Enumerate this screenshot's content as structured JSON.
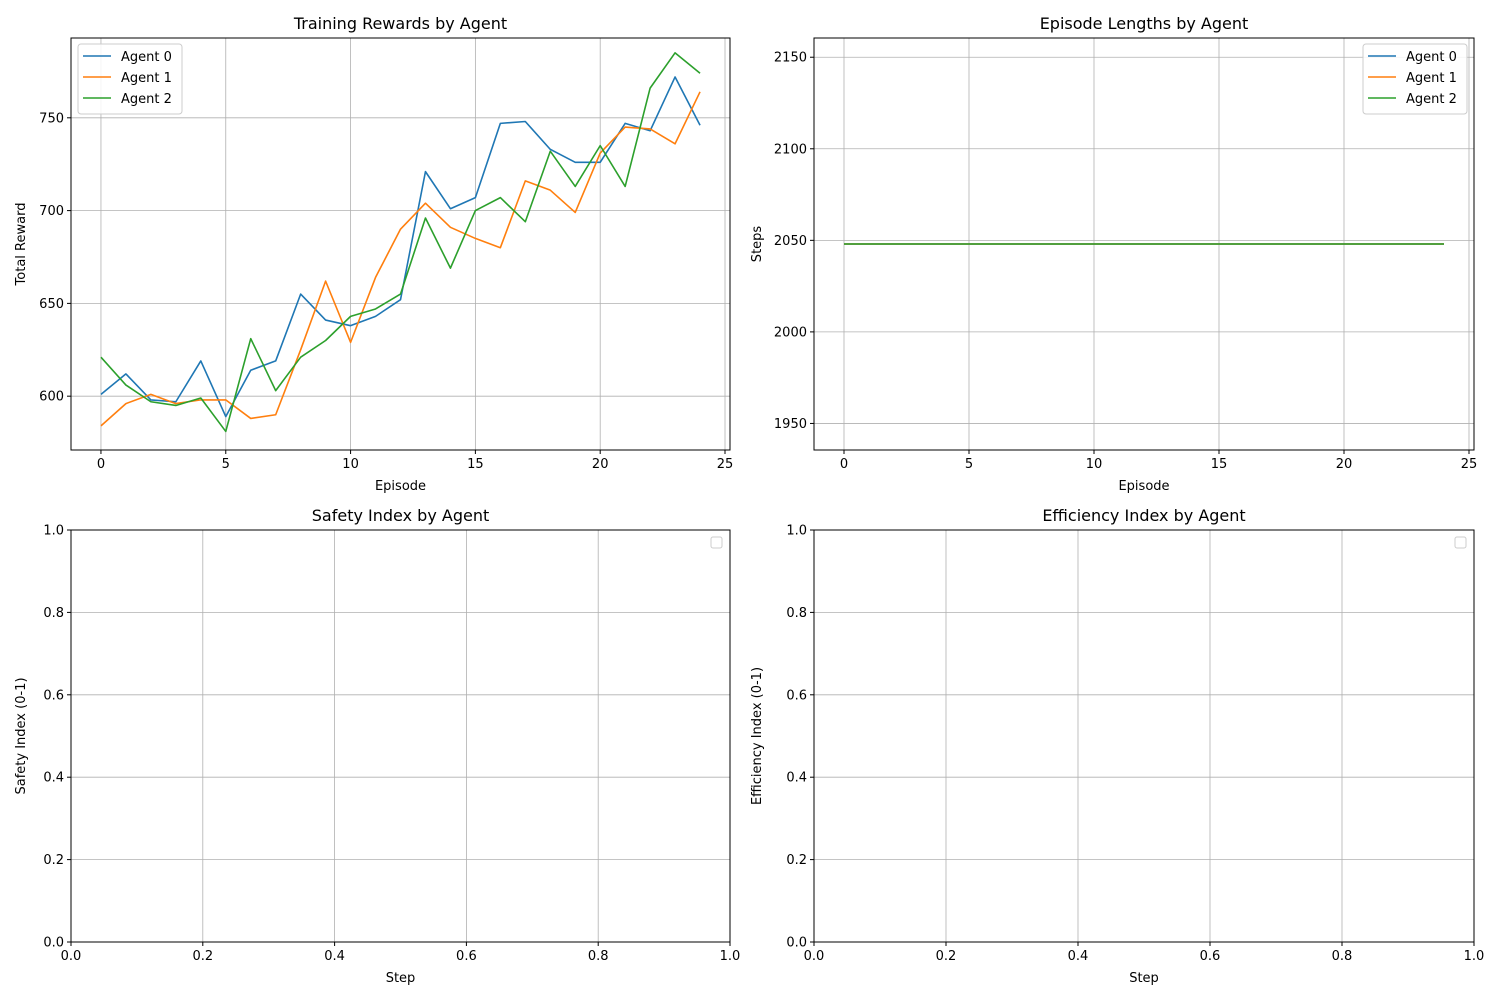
{
  "colors": {
    "agent0": "#1f77b4",
    "agent1": "#ff7f0e",
    "agent2": "#2ca02c",
    "grid": "#b0b0b0",
    "axes": "#000000",
    "legend_border": "#cccccc"
  },
  "chart_data": [
    {
      "type": "line",
      "title": "Training Rewards by Agent",
      "xlabel": "Episode",
      "ylabel": "Total Reward",
      "xlim": [
        -1.2,
        25.2
      ],
      "ylim": [
        571,
        793
      ],
      "xticks": [
        0,
        5,
        10,
        15,
        20,
        25
      ],
      "yticks": [
        600,
        650,
        700,
        750
      ],
      "grid": true,
      "legend": "top-left",
      "x": [
        0,
        1,
        2,
        3,
        4,
        5,
        6,
        7,
        8,
        9,
        10,
        11,
        12,
        13,
        14,
        15,
        16,
        17,
        18,
        19,
        20,
        21,
        22,
        23,
        24
      ],
      "series": [
        {
          "name": "Agent 0",
          "color_key": "agent0",
          "values": [
            601,
            612,
            598,
            597,
            619,
            589,
            614,
            619,
            655,
            641,
            638,
            643,
            652,
            721,
            701,
            707,
            747,
            748,
            733,
            726,
            726,
            747,
            743,
            772,
            746
          ]
        },
        {
          "name": "Agent 1",
          "color_key": "agent1",
          "values": [
            584,
            596,
            601,
            596,
            598,
            598,
            588,
            590,
            625,
            662,
            629,
            664,
            690,
            704,
            691,
            685,
            680,
            716,
            711,
            699,
            731,
            745,
            744,
            736,
            764
          ]
        },
        {
          "name": "Agent 2",
          "color_key": "agent2",
          "values": [
            621,
            606,
            597,
            595,
            599,
            581,
            631,
            603,
            621,
            630,
            643,
            647,
            655,
            696,
            669,
            700,
            707,
            694,
            732,
            713,
            735,
            713,
            766,
            785,
            774
          ]
        }
      ]
    },
    {
      "type": "line",
      "title": "Episode Lengths by Agent",
      "xlabel": "Episode",
      "ylabel": "Steps",
      "xlim": [
        -1.2,
        25.2
      ],
      "ylim": [
        1935.5,
        2160.5
      ],
      "xticks": [
        0,
        5,
        10,
        15,
        20,
        25
      ],
      "yticks": [
        1950,
        2000,
        2050,
        2100,
        2150
      ],
      "grid": true,
      "legend": "top-right",
      "x": [
        0,
        1,
        2,
        3,
        4,
        5,
        6,
        7,
        8,
        9,
        10,
        11,
        12,
        13,
        14,
        15,
        16,
        17,
        18,
        19,
        20,
        21,
        22,
        23,
        24
      ],
      "series": [
        {
          "name": "Agent 0",
          "color_key": "agent0",
          "values": [
            2048,
            2048,
            2048,
            2048,
            2048,
            2048,
            2048,
            2048,
            2048,
            2048,
            2048,
            2048,
            2048,
            2048,
            2048,
            2048,
            2048,
            2048,
            2048,
            2048,
            2048,
            2048,
            2048,
            2048,
            2048
          ]
        },
        {
          "name": "Agent 1",
          "color_key": "agent1",
          "values": [
            2048,
            2048,
            2048,
            2048,
            2048,
            2048,
            2048,
            2048,
            2048,
            2048,
            2048,
            2048,
            2048,
            2048,
            2048,
            2048,
            2048,
            2048,
            2048,
            2048,
            2048,
            2048,
            2048,
            2048,
            2048
          ]
        },
        {
          "name": "Agent 2",
          "color_key": "agent2",
          "values": [
            2048,
            2048,
            2048,
            2048,
            2048,
            2048,
            2048,
            2048,
            2048,
            2048,
            2048,
            2048,
            2048,
            2048,
            2048,
            2048,
            2048,
            2048,
            2048,
            2048,
            2048,
            2048,
            2048,
            2048,
            2048
          ]
        }
      ]
    },
    {
      "type": "line",
      "title": "Safety Index by Agent",
      "xlabel": "Step",
      "ylabel": "Safety Index (0-1)",
      "xlim": [
        0,
        1
      ],
      "ylim": [
        0,
        1
      ],
      "xticks": [
        0.0,
        0.2,
        0.4,
        0.6,
        0.8,
        1.0
      ],
      "yticks": [
        0.0,
        0.2,
        0.4,
        0.6,
        0.8,
        1.0
      ],
      "tick_decimals": 1,
      "grid": true,
      "legend": "top-right (empty)",
      "series": []
    },
    {
      "type": "line",
      "title": "Efficiency Index by Agent",
      "xlabel": "Step",
      "ylabel": "Efficiency Index (0-1)",
      "xlim": [
        0,
        1
      ],
      "ylim": [
        0,
        1
      ],
      "xticks": [
        0.0,
        0.2,
        0.4,
        0.6,
        0.8,
        1.0
      ],
      "yticks": [
        0.0,
        0.2,
        0.4,
        0.6,
        0.8,
        1.0
      ],
      "tick_decimals": 1,
      "grid": true,
      "legend": "top-right (empty)",
      "series": []
    }
  ]
}
